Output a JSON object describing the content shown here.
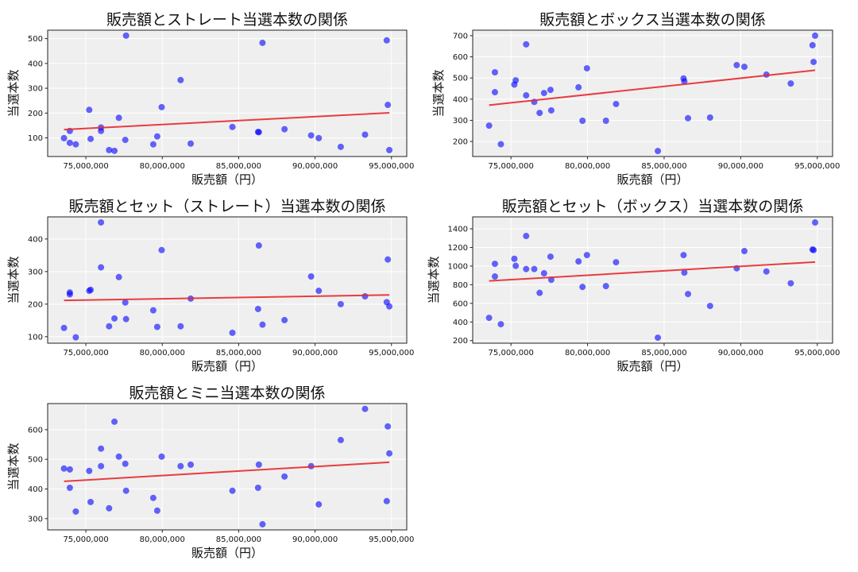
{
  "chart_data": [
    {
      "type": "scatter",
      "title": "販売額とストレート当選本数の関係",
      "xlabel": "販売額（円）",
      "ylabel": "当選本数",
      "xlim": [
        72500000,
        96000000
      ],
      "ylim": [
        25,
        534
      ],
      "xticks": [
        75000000,
        80000000,
        85000000,
        90000000,
        95000000
      ],
      "xtick_labels": [
        "75,000,000",
        "80,000,000",
        "85,000,000",
        "90,000,000",
        "95,000,000"
      ],
      "yticks": [
        100,
        200,
        300,
        400,
        500
      ],
      "ytick_labels": [
        "100",
        "200",
        "300",
        "400",
        "500"
      ],
      "grid": true,
      "trendline": "linear",
      "y": [
        99,
        128,
        80,
        74,
        213,
        96,
        142,
        128,
        51,
        48,
        181,
        92,
        512,
        74,
        106,
        224,
        333,
        77,
        144,
        124,
        123,
        483,
        135,
        110,
        99,
        64,
        113,
        493,
        233,
        51
      ]
    },
    {
      "type": "scatter",
      "title": "販売額とボックス当選本数の関係",
      "xlabel": "販売額（円）",
      "ylabel": "当選本数",
      "xlim": [
        72500000,
        96000000
      ],
      "ylim": [
        129,
        726
      ],
      "xticks": [
        75000000,
        80000000,
        85000000,
        90000000,
        95000000
      ],
      "xtick_labels": [
        "75,000,000",
        "80,000,000",
        "85,000,000",
        "90,000,000",
        "95,000,000"
      ],
      "yticks": [
        200,
        300,
        400,
        500,
        600,
        700
      ],
      "ytick_labels": [
        "200",
        "300",
        "400",
        "500",
        "600",
        "700"
      ],
      "grid": true,
      "trendline": "linear",
      "y": [
        275,
        527,
        433,
        187,
        469,
        489,
        659,
        418,
        387,
        335,
        429,
        444,
        347,
        456,
        298,
        546,
        298,
        377,
        155,
        498,
        484,
        310,
        313,
        561,
        553,
        516,
        474,
        655,
        576,
        700
      ]
    },
    {
      "type": "scatter",
      "title": "販売額とセット（ストレート）当選本数の関係",
      "xlabel": "販売額（円）",
      "ylabel": "当選本数",
      "xlim": [
        72500000,
        96000000
      ],
      "ylim": [
        80,
        468
      ],
      "xticks": [
        75000000,
        80000000,
        85000000,
        90000000,
        95000000
      ],
      "xtick_labels": [
        "75,000,000",
        "80,000,000",
        "85,000,000",
        "90,000,000",
        "95,000,000"
      ],
      "yticks": [
        100,
        200,
        300,
        400
      ],
      "ytick_labels": [
        "100",
        "200",
        "300",
        "400"
      ],
      "grid": true,
      "trendline": "linear",
      "y": [
        127,
        236,
        230,
        98,
        241,
        244,
        451,
        313,
        132,
        156,
        283,
        205,
        154,
        181,
        130,
        366,
        132,
        217,
        112,
        185,
        380,
        137,
        151,
        285,
        241,
        200,
        224,
        206,
        337,
        193
      ]
    },
    {
      "type": "scatter",
      "title": "販売額とセット（ボックス）当選本数の関係",
      "xlabel": "販売額（円）",
      "ylabel": "当選本数",
      "xlim": [
        72500000,
        96000000
      ],
      "ylim": [
        172,
        1528
      ],
      "xticks": [
        75000000,
        80000000,
        85000000,
        90000000,
        95000000
      ],
      "xtick_labels": [
        "75,000,000",
        "80,000,000",
        "85,000,000",
        "90,000,000",
        "95,000,000"
      ],
      "yticks": [
        200,
        400,
        600,
        800,
        1000,
        1200,
        1400
      ],
      "ytick_labels": [
        "200",
        "400",
        "600",
        "800",
        "1000",
        "1200",
        "1400"
      ],
      "grid": true,
      "trendline": "linear",
      "y": [
        444,
        1024,
        888,
        376,
        1078,
        1002,
        1323,
        968,
        968,
        712,
        922,
        1101,
        853,
        1050,
        776,
        1118,
        785,
        1041,
        231,
        1118,
        930,
        700,
        572,
        976,
        1161,
        942,
        815,
        1178,
        1172,
        1468
      ]
    },
    {
      "type": "scatter",
      "title": "販売額とミニ当選本数の関係",
      "xlabel": "販売額（円）",
      "ylabel": "当選本数",
      "xlim": [
        72500000,
        96000000
      ],
      "ylim": [
        262,
        688
      ],
      "xticks": [
        75000000,
        80000000,
        85000000,
        90000000,
        95000000
      ],
      "xtick_labels": [
        "75,000,000",
        "80,000,000",
        "85,000,000",
        "90,000,000",
        "95,000,000"
      ],
      "yticks": [
        300,
        400,
        500,
        600
      ],
      "ytick_labels": [
        "300",
        "400",
        "500",
        "600"
      ],
      "grid": true,
      "trendline": "linear",
      "y": [
        469,
        466,
        404,
        324,
        461,
        356,
        536,
        477,
        335,
        627,
        509,
        485,
        394,
        370,
        327,
        509,
        477,
        482,
        394,
        404,
        482,
        281,
        442,
        477,
        348,
        565,
        670,
        359,
        611,
        520
      ]
    }
  ],
  "shared_x": [
    73570000,
    73950000,
    73950000,
    74340000,
    75220000,
    75310000,
    75990000,
    75990000,
    76520000,
    76870000,
    77160000,
    77580000,
    77630000,
    79410000,
    79670000,
    79960000,
    81200000,
    81860000,
    84590000,
    86270000,
    86320000,
    86560000,
    88000000,
    89740000,
    90240000,
    91680000,
    93270000,
    94690000,
    94760000,
    94860000
  ],
  "colors": {
    "points": "#0000ff",
    "trendline": "#e8282b",
    "plot_bg": "#efefef",
    "grid": "#ffffff"
  }
}
